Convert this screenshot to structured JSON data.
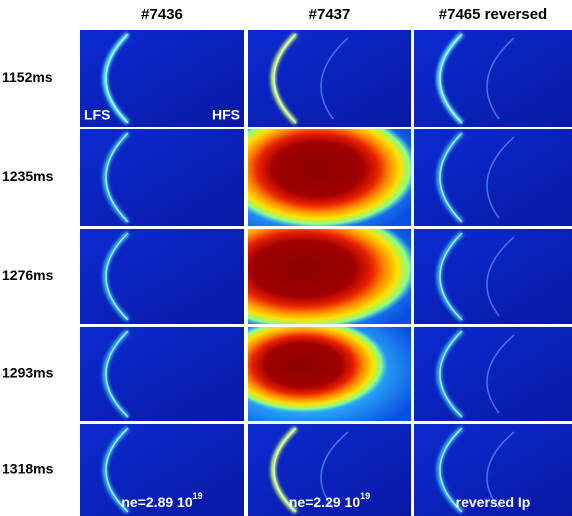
{
  "columns": [
    "#7436",
    "#7437",
    "#7465 reversed"
  ],
  "rows": [
    "1152ms",
    "1235ms",
    "1276ms",
    "1293ms",
    "1318ms"
  ],
  "annotations": {
    "lfs": "LFS",
    "hfs": "HFS"
  },
  "footer": [
    {
      "text": "ne=2.89 10",
      "sup": "19"
    },
    {
      "text": "ne=2.29 10",
      "sup": "19"
    },
    {
      "text": "reversed Ip"
    }
  ]
}
